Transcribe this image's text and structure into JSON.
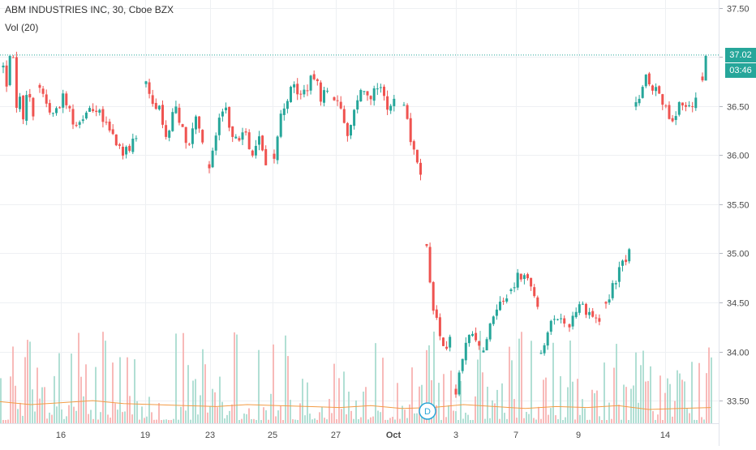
{
  "header": {
    "title": "ABM INDUSTRIES INC, 30, Cboe BZX",
    "volume_label": "Vol (20)"
  },
  "last_price_tag": {
    "price": "37.02",
    "countdown": "03:46",
    "color": "#26a69a"
  },
  "event_marker": {
    "label": "D",
    "date": "Oct 2"
  },
  "chart_data": {
    "type": "candlestick",
    "title": "ABM INDUSTRIES INC, 30, Cboe BZX",
    "xlabel": "",
    "ylabel": "",
    "ylim": [
      33.27,
      37.58
    ],
    "y_ticks": [
      33.5,
      34.0,
      34.5,
      35.0,
      35.5,
      36.0,
      36.5,
      37.0,
      37.5
    ],
    "y_tick_labels": [
      "33.50",
      "34.00",
      "34.50",
      "35.00",
      "35.50",
      "36.00",
      "36.50",
      "37.00",
      "37.50"
    ],
    "x_tick_labels": [
      "16",
      "19",
      "23",
      "25",
      "27",
      "Oct",
      "3",
      "7",
      "9",
      "14"
    ],
    "grid": true,
    "colors": {
      "up": "#26a69a",
      "down": "#ef5350",
      "vol_up": "#a8dccf",
      "vol_down": "#f7b3b1",
      "vol_ma": "#f39c46",
      "grid": "#eef0f3",
      "last_price_line": "#26a69a"
    },
    "price_series": [
      {
        "name": "ABM",
        "session_start": "Sep 13",
        "keypoints": [
          36.9,
          36.6,
          36.95,
          37.2,
          36.8,
          36.5,
          36.6,
          36.3,
          36.6,
          36.7,
          36.5,
          36.45
        ]
      },
      {
        "name": "ABM",
        "session_start": "Sep 16",
        "keypoints": [
          36.7,
          36.4,
          36.6,
          36.3,
          36.5,
          36.4,
          36.2,
          36.0,
          36.2
        ]
      },
      {
        "name": "ABM",
        "session_start": "Sep 19",
        "keypoints": [
          36.7,
          36.5,
          36.45,
          36.2,
          36.5,
          36.3,
          36.1,
          36.4,
          36.1
        ]
      },
      {
        "name": "ABM",
        "session_start": "Sep 23",
        "keypoints": [
          35.9,
          36.2,
          36.5,
          36.3,
          36.1,
          36.3,
          36.0,
          36.2,
          35.9
        ]
      },
      {
        "name": "ABM",
        "session_start": "Sep 25",
        "keypoints": [
          36.0,
          36.4,
          36.6,
          36.7,
          36.6,
          36.7,
          36.8,
          36.6,
          36.65
        ]
      },
      {
        "name": "ABM",
        "session_start": "Sep 27",
        "keypoints": [
          36.6,
          36.4,
          36.2,
          36.6,
          36.7,
          36.6,
          36.75,
          36.5,
          36.55
        ]
      },
      {
        "name": "ABM",
        "session_start": "Oct 1",
        "keypoints": [
          36.5,
          36.2,
          36.0,
          35.8
        ]
      },
      {
        "name": "ABM",
        "session_start": "Oct 2",
        "keypoints": [
          35.1,
          34.5,
          34.2,
          34.0,
          34.1
        ]
      },
      {
        "name": "ABM",
        "session_start": "Oct 3",
        "keypoints": [
          33.6,
          34.0,
          34.2,
          34.1
        ]
      },
      {
        "name": "ABM",
        "session_start": "Oct 4",
        "keypoints": [
          34.0,
          34.3,
          34.5,
          34.6
        ]
      },
      {
        "name": "ABM",
        "session_start": "Oct 7",
        "keypoints": [
          34.6,
          34.8,
          34.7,
          34.5
        ]
      },
      {
        "name": "ABM",
        "session_start": "Oct 8",
        "keypoints": [
          34.0,
          34.2,
          34.4,
          34.3
        ]
      },
      {
        "name": "ABM",
        "session_start": "Oct 9",
        "keypoints": [
          34.3,
          34.5,
          34.4,
          34.3
        ]
      },
      {
        "name": "ABM",
        "session_start": "Oct 10",
        "keypoints": [
          34.5,
          34.7,
          34.9,
          35.0
        ]
      },
      {
        "name": "ABM",
        "session_start": "Oct 14",
        "keypoints": [
          36.5,
          36.8,
          36.7,
          36.6,
          36.3,
          36.5,
          36.45,
          36.6
        ]
      },
      {
        "name": "ABM",
        "session_start": "Oct 15",
        "keypoints": [
          36.8,
          37.0,
          37.02
        ]
      }
    ],
    "volume_ma_keypoints": [
      33.49,
      33.46,
      33.48,
      33.5,
      33.47,
      33.46,
      33.45,
      33.44,
      33.46,
      33.45,
      33.44,
      33.43,
      33.45,
      33.42,
      33.43,
      33.46,
      33.44,
      33.42,
      33.44,
      33.43,
      33.45,
      33.41,
      33.42,
      33.43
    ]
  }
}
